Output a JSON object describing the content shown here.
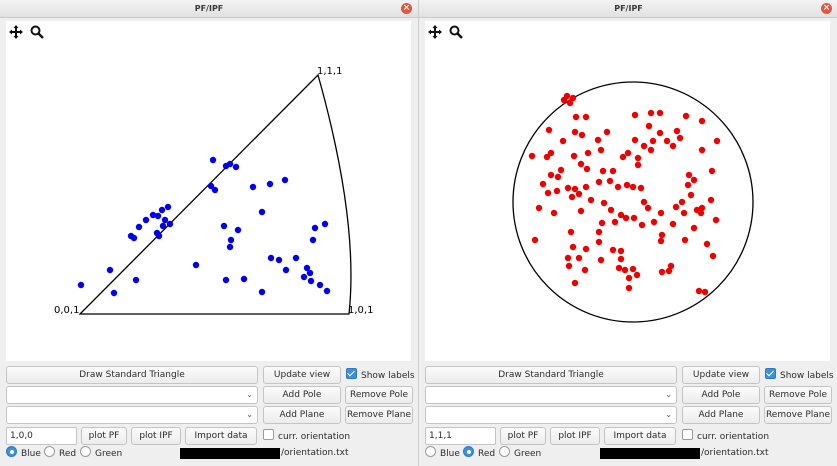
{
  "left": {
    "title": "PF/IPF",
    "labels": {
      "corner_001": "0,0,1",
      "corner_101": "1,0,1",
      "corner_111": "1,1,1"
    },
    "controls": {
      "draw_triangle": "Draw Standard Triangle",
      "update_view": "Update view",
      "show_labels": "Show labels",
      "show_labels_checked": true,
      "add_pole": "Add Pole",
      "remove_pole": "Remove Pole",
      "add_plane": "Add Plane",
      "remove_plane": "Remove Plane",
      "direction_value": "1,0,0",
      "plot_pf": "plot PF",
      "plot_ipf": "plot IPF",
      "import_data": "Import data",
      "curr_orientation": "curr. orientation",
      "curr_orientation_checked": false,
      "color_blue": "Blue",
      "color_red": "Red",
      "color_green": "Green",
      "selected_color": "Blue",
      "file_suffix": "/orientation.txt"
    },
    "marker_color": "#0000ee"
  },
  "right": {
    "title": "PF/IPF",
    "controls": {
      "draw_triangle": "Draw Standard Triangle",
      "update_view": "Update view",
      "show_labels": "Show labels",
      "show_labels_checked": true,
      "add_pole": "Add Pole",
      "remove_pole": "Remove Pole",
      "add_plane": "Add Plane",
      "remove_plane": "Remove Plane",
      "direction_value": "1,1,1",
      "plot_pf": "plot PF",
      "plot_ipf": "plot IPF",
      "import_data": "Import data",
      "curr_orientation": "curr. orientation",
      "curr_orientation_checked": false,
      "color_blue": "Blue",
      "color_red": "Red",
      "color_green": "Green",
      "selected_color": "Red",
      "file_suffix": "/orientation.txt"
    },
    "marker_color": "#ee0000"
  },
  "icons": {
    "pan": "move-arrows-icon",
    "zoom": "magnifier-icon",
    "close": "close-icon"
  }
}
